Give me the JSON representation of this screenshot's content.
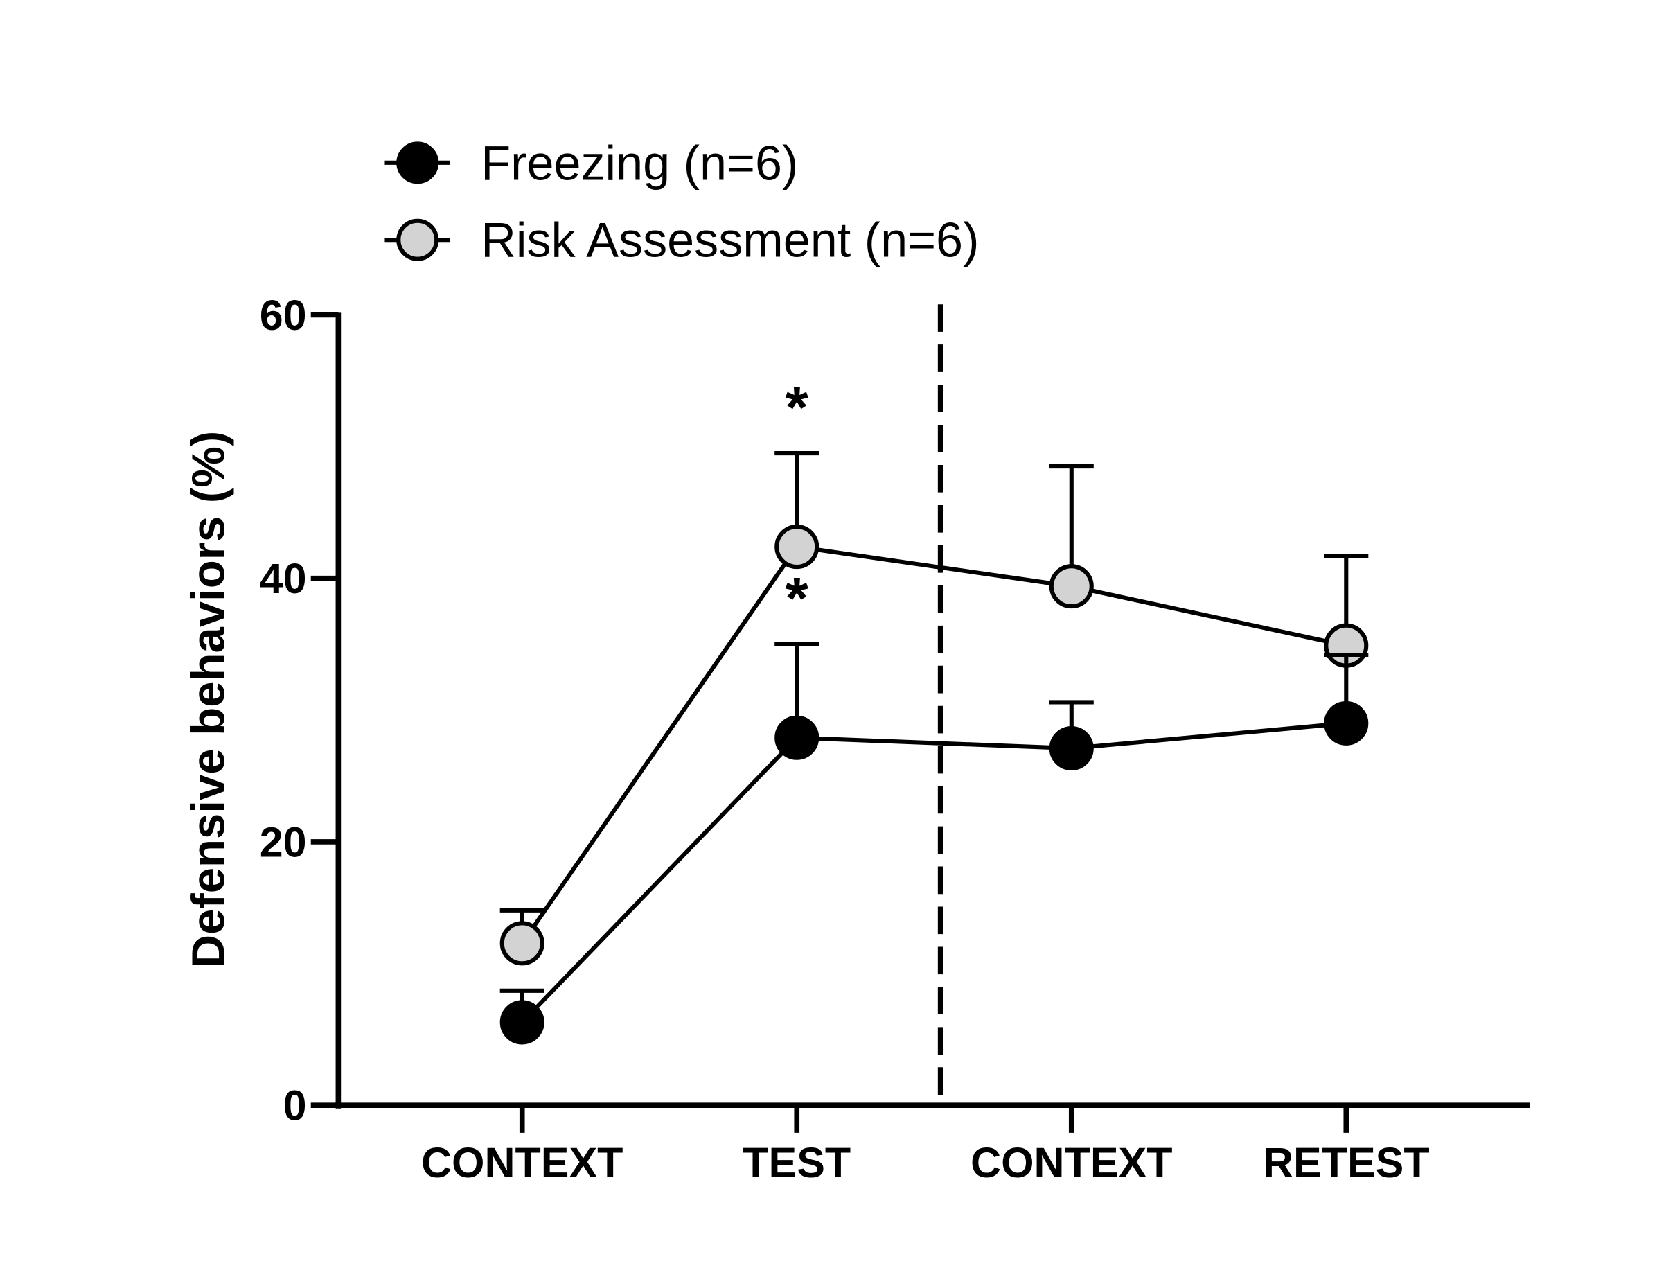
{
  "chart_data": {
    "type": "line",
    "title": "",
    "xlabel": "",
    "ylabel": "Defensive behaviors (%)",
    "categories": [
      "CONTEXT",
      "TEST",
      "CONTEXT",
      "RETEST"
    ],
    "ylim": [
      0,
      60
    ],
    "yticks": [
      "0",
      "20",
      "40",
      "60"
    ],
    "grid": false,
    "legend_position": "top-left",
    "divider_after_category_index": 1,
    "series": [
      {
        "name": "Freezing (n=6)",
        "color": "#000000",
        "values": [
          6.3,
          27.9,
          27.1,
          29.0
        ],
        "error_upper": [
          8.7,
          35.0,
          30.6,
          34.2
        ]
      },
      {
        "name": "Risk Assessment (n=6)",
        "color": "#d3d3d3",
        "values": [
          12.3,
          42.4,
          39.4,
          34.9
        ],
        "error_upper": [
          14.8,
          49.5,
          48.5,
          41.7
        ]
      }
    ],
    "annotations": [
      {
        "text": "*",
        "category_index": 1,
        "series": "Risk Assessment (n=6)"
      },
      {
        "text": "*",
        "category_index": 1,
        "series": "Freezing (n=6)"
      }
    ]
  }
}
